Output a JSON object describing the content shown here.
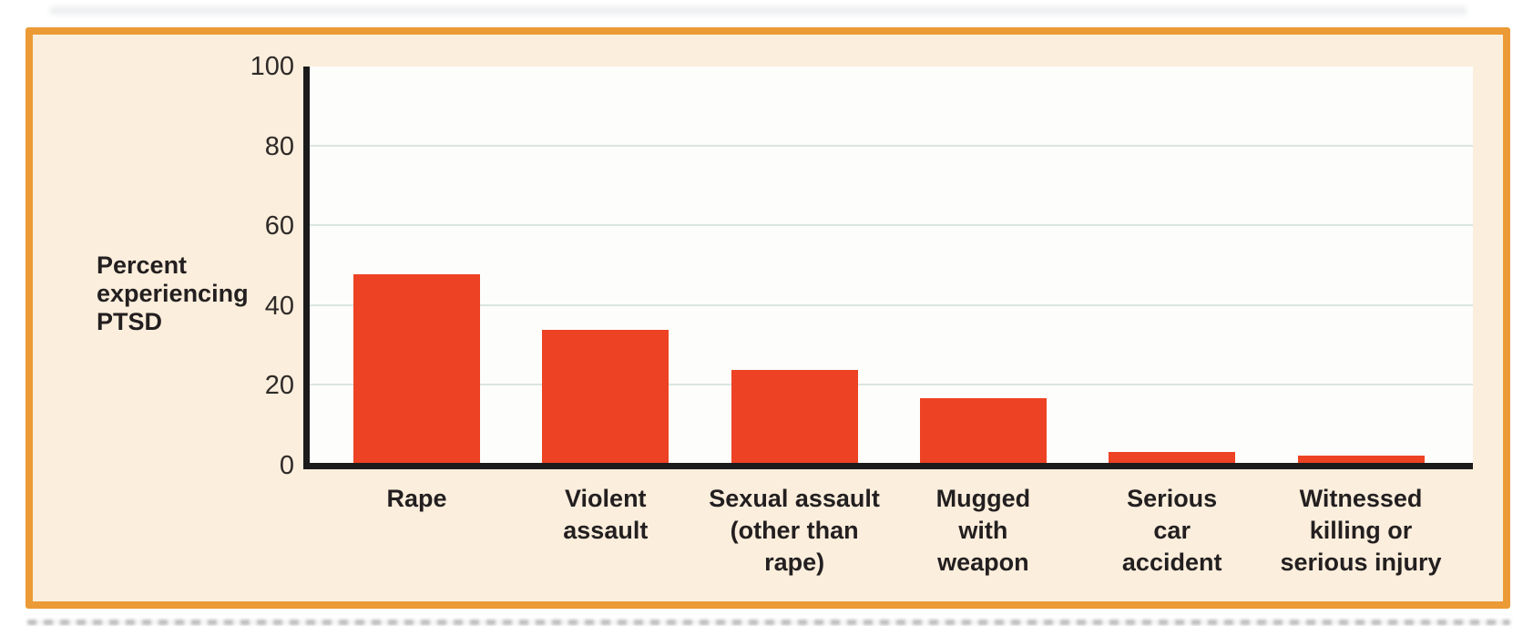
{
  "chart_data": {
    "type": "bar",
    "title": "",
    "xlabel": "",
    "ylabel": "Percent experiencing PTSD",
    "ylim": [
      0,
      100
    ],
    "yticks": [
      0,
      20,
      40,
      60,
      80,
      100
    ],
    "grid": "horizontal light gridlines at 20, 40, 60, 80; none at top",
    "legend": "none",
    "categories": [
      "Rape",
      "Violent assault",
      "Sexual assault (other than rape)",
      "Mugged with weapon",
      "Serious car accident",
      "Witnessed killing or serious injury"
    ],
    "category_label_lines": [
      [
        "Rape"
      ],
      [
        "Violent",
        "assault"
      ],
      [
        "Sexual assault",
        "(other than",
        "rape)"
      ],
      [
        "Mugged",
        "with",
        "weapon"
      ],
      [
        "Serious",
        "car",
        "accident"
      ],
      [
        "Witnessed",
        "killing or",
        "serious injury"
      ]
    ],
    "values": [
      48,
      34,
      24,
      17,
      3.5,
      2.5
    ]
  },
  "colors": {
    "panel_border": "#EB9A35",
    "panel_background": "#FBEEDC",
    "plot_background": "#FDFDFB",
    "bar_fill": "#ED4224",
    "axis_line": "#1B1B1B",
    "gridline": "#DAE6E0",
    "label_text": "#231F20",
    "tick_text": "#2E2A28"
  }
}
